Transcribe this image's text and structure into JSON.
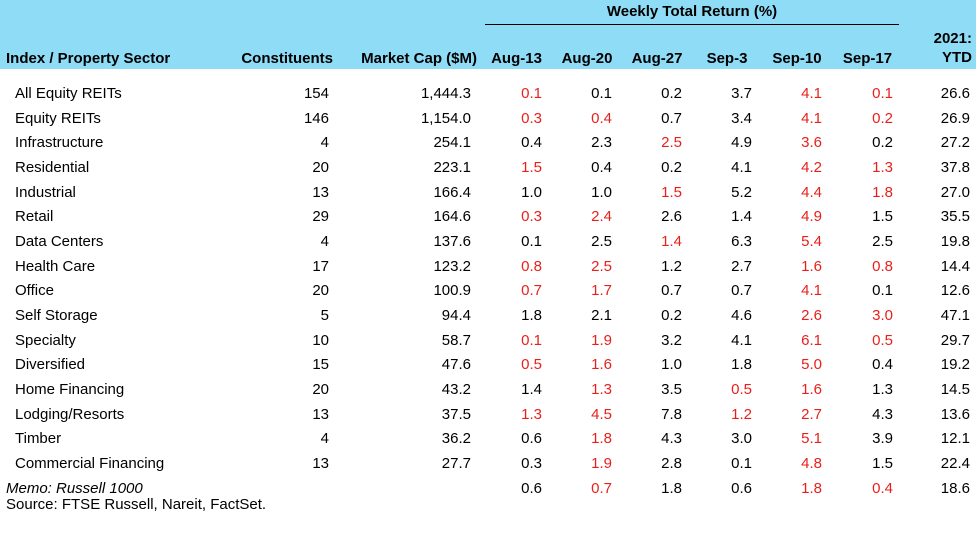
{
  "chart_data": {
    "type": "table",
    "header": {
      "group_label": "Weekly Total Return (%)",
      "col_name": "Index / Property Sector",
      "col_constituents": "Constituents",
      "col_mcap": "Market Cap ($M)",
      "weeks": [
        "Aug-13",
        "Aug-20",
        "Aug-27",
        "Sep-3",
        "Sep-10",
        "Sep-17"
      ],
      "ytd_line1": "2021:",
      "ytd_line2": "YTD"
    },
    "negative_color": "#e8201c",
    "header_background": "#8fdcf7",
    "rows": [
      {
        "name": "All Equity REITs",
        "constituents": "154",
        "mcap": "1,444.3",
        "weekly": [
          "0.1",
          "0.1",
          "0.2",
          "3.7",
          "4.1",
          "0.1"
        ],
        "negative": [
          true,
          false,
          false,
          false,
          true,
          true
        ],
        "ytd": "26.6"
      },
      {
        "name": "Equity REITs",
        "constituents": "146",
        "mcap": "1,154.0",
        "weekly": [
          "0.3",
          "0.4",
          "0.7",
          "3.4",
          "4.1",
          "0.2"
        ],
        "negative": [
          true,
          true,
          false,
          false,
          true,
          true
        ],
        "ytd": "26.9"
      },
      {
        "name": "Infrastructure",
        "constituents": "4",
        "mcap": "254.1",
        "weekly": [
          "0.4",
          "2.3",
          "2.5",
          "4.9",
          "3.6",
          "0.2"
        ],
        "negative": [
          false,
          false,
          true,
          false,
          true,
          false
        ],
        "ytd": "27.2"
      },
      {
        "name": "Residential",
        "constituents": "20",
        "mcap": "223.1",
        "weekly": [
          "1.5",
          "0.4",
          "0.2",
          "4.1",
          "4.2",
          "1.3"
        ],
        "negative": [
          true,
          false,
          false,
          false,
          true,
          true
        ],
        "ytd": "37.8"
      },
      {
        "name": "Industrial",
        "constituents": "13",
        "mcap": "166.4",
        "weekly": [
          "1.0",
          "1.0",
          "1.5",
          "5.2",
          "4.4",
          "1.8"
        ],
        "negative": [
          false,
          false,
          true,
          false,
          true,
          true
        ],
        "ytd": "27.0"
      },
      {
        "name": "Retail",
        "constituents": "29",
        "mcap": "164.6",
        "weekly": [
          "0.3",
          "2.4",
          "2.6",
          "1.4",
          "4.9",
          "1.5"
        ],
        "negative": [
          true,
          true,
          false,
          false,
          true,
          false
        ],
        "ytd": "35.5"
      },
      {
        "name": "Data Centers",
        "constituents": "4",
        "mcap": "137.6",
        "weekly": [
          "0.1",
          "2.5",
          "1.4",
          "6.3",
          "5.4",
          "2.5"
        ],
        "negative": [
          false,
          false,
          true,
          false,
          true,
          false
        ],
        "ytd": "19.8"
      },
      {
        "name": "Health Care",
        "constituents": "17",
        "mcap": "123.2",
        "weekly": [
          "0.8",
          "2.5",
          "1.2",
          "2.7",
          "1.6",
          "0.8"
        ],
        "negative": [
          true,
          true,
          false,
          false,
          true,
          true
        ],
        "ytd": "14.4"
      },
      {
        "name": "Office",
        "constituents": "20",
        "mcap": "100.9",
        "weekly": [
          "0.7",
          "1.7",
          "0.7",
          "0.7",
          "4.1",
          "0.1"
        ],
        "negative": [
          true,
          true,
          false,
          false,
          true,
          false
        ],
        "ytd": "12.6"
      },
      {
        "name": "Self Storage",
        "constituents": "5",
        "mcap": "94.4",
        "weekly": [
          "1.8",
          "2.1",
          "0.2",
          "4.6",
          "2.6",
          "3.0"
        ],
        "negative": [
          false,
          false,
          false,
          false,
          true,
          true
        ],
        "ytd": "47.1"
      },
      {
        "name": "Specialty",
        "constituents": "10",
        "mcap": "58.7",
        "weekly": [
          "0.1",
          "1.9",
          "3.2",
          "4.1",
          "6.1",
          "0.5"
        ],
        "negative": [
          true,
          true,
          false,
          false,
          true,
          true
        ],
        "ytd": "29.7"
      },
      {
        "name": "Diversified",
        "constituents": "15",
        "mcap": "47.6",
        "weekly": [
          "0.5",
          "1.6",
          "1.0",
          "1.8",
          "5.0",
          "0.4"
        ],
        "negative": [
          true,
          true,
          false,
          false,
          true,
          false
        ],
        "ytd": "19.2"
      },
      {
        "name": "Home Financing",
        "constituents": "20",
        "mcap": "43.2",
        "weekly": [
          "1.4",
          "1.3",
          "3.5",
          "0.5",
          "1.6",
          "1.3"
        ],
        "negative": [
          false,
          true,
          false,
          true,
          true,
          false
        ],
        "ytd": "14.5"
      },
      {
        "name": "Lodging/Resorts",
        "constituents": "13",
        "mcap": "37.5",
        "weekly": [
          "1.3",
          "4.5",
          "7.8",
          "1.2",
          "2.7",
          "4.3"
        ],
        "negative": [
          true,
          true,
          false,
          true,
          true,
          false
        ],
        "ytd": "13.6"
      },
      {
        "name": "Timber",
        "constituents": "4",
        "mcap": "36.2",
        "weekly": [
          "0.6",
          "1.8",
          "4.3",
          "3.0",
          "5.1",
          "3.9"
        ],
        "negative": [
          false,
          true,
          false,
          false,
          true,
          false
        ],
        "ytd": "12.1"
      },
      {
        "name": "Commercial Financing",
        "constituents": "13",
        "mcap": "27.7",
        "weekly": [
          "0.3",
          "1.9",
          "2.8",
          "0.1",
          "4.8",
          "1.5"
        ],
        "negative": [
          false,
          true,
          false,
          false,
          true,
          false
        ],
        "ytd": "22.4"
      }
    ],
    "memo": {
      "name": "Memo: Russell 1000",
      "weekly": [
        "0.6",
        "0.7",
        "1.8",
        "0.6",
        "1.8",
        "0.4"
      ],
      "negative": [
        false,
        true,
        false,
        false,
        true,
        true
      ],
      "ytd": "18.6"
    },
    "source": "Source: FTSE Russell, Nareit, FactSet."
  }
}
